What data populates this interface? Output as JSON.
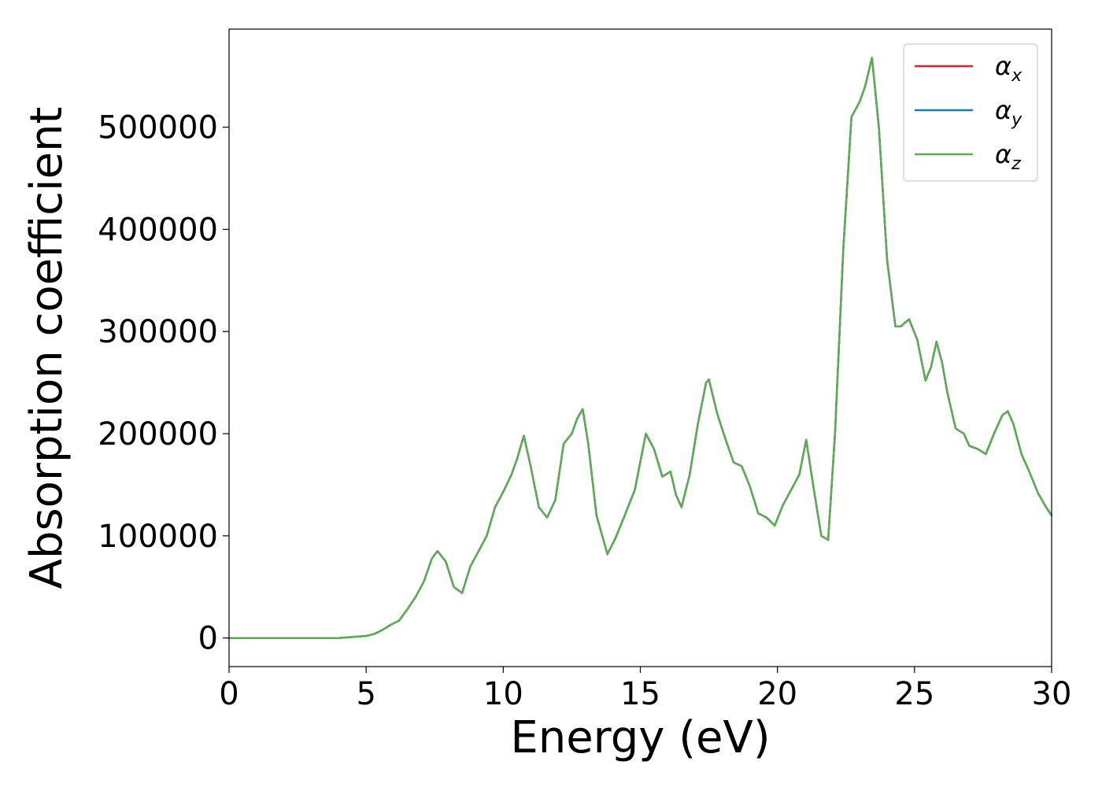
{
  "chart_data": {
    "type": "line",
    "title": "",
    "xlabel": "Energy (eV)",
    "ylabel": "Absorption coefficient",
    "xlim": [
      0,
      30
    ],
    "ylim": [
      -28000,
      596000
    ],
    "xticks": [
      0,
      5,
      10,
      15,
      20,
      25,
      30
    ],
    "xtick_labels": [
      "0",
      "5",
      "10",
      "15",
      "20",
      "25",
      "30"
    ],
    "yticks": [
      0,
      100000,
      200000,
      300000,
      400000,
      500000
    ],
    "ytick_labels": [
      "0",
      "100000",
      "200000",
      "300000",
      "400000",
      "500000"
    ],
    "grid": false,
    "legend_position": "top-right",
    "x": [
      0,
      1,
      2,
      3,
      4,
      5,
      5.3,
      5.6,
      5.9,
      6.2,
      6.5,
      6.8,
      7.1,
      7.4,
      7.6,
      7.9,
      8.2,
      8.5,
      8.8,
      9.1,
      9.4,
      9.7,
      10.0,
      10.3,
      10.5,
      10.75,
      11.0,
      11.3,
      11.6,
      11.9,
      12.2,
      12.5,
      12.7,
      12.9,
      13.1,
      13.4,
      13.8,
      14.1,
      14.4,
      14.8,
      15.2,
      15.5,
      15.8,
      16.1,
      16.3,
      16.5,
      16.8,
      17.1,
      17.4,
      17.5,
      17.8,
      18.1,
      18.4,
      18.7,
      19.0,
      19.3,
      19.6,
      19.9,
      20.2,
      20.5,
      20.8,
      21.05,
      21.3,
      21.6,
      21.85,
      22.1,
      22.4,
      22.7,
      23.0,
      23.2,
      23.45,
      23.7,
      24.0,
      24.3,
      24.5,
      24.8,
      25.1,
      25.4,
      25.6,
      25.8,
      26.0,
      26.2,
      26.5,
      26.8,
      27.0,
      27.3,
      27.6,
      27.9,
      28.2,
      28.4,
      28.6,
      28.9,
      29.2,
      29.5,
      29.8,
      30.0
    ],
    "series": [
      {
        "name": "αx",
        "color": "#d62728",
        "values": [
          0,
          0,
          0,
          0,
          0,
          2000,
          4000,
          8000,
          13000,
          17000,
          28000,
          40000,
          55000,
          78000,
          85000,
          75000,
          50000,
          44000,
          70000,
          85000,
          100000,
          128000,
          143000,
          160000,
          175000,
          198000,
          168000,
          128000,
          118000,
          135000,
          190000,
          200000,
          215000,
          224000,
          190000,
          120000,
          82000,
          98000,
          118000,
          145000,
          200000,
          185000,
          158000,
          163000,
          140000,
          128000,
          160000,
          210000,
          250000,
          253000,
          220000,
          195000,
          172000,
          168000,
          148000,
          122000,
          118000,
          110000,
          130000,
          145000,
          160000,
          194000,
          150000,
          100000,
          96000,
          200000,
          380000,
          510000,
          525000,
          540000,
          568000,
          500000,
          370000,
          305000,
          305000,
          312000,
          292000,
          252000,
          265000,
          290000,
          270000,
          240000,
          205000,
          200000,
          188000,
          185000,
          180000,
          200000,
          218000,
          222000,
          210000,
          180000,
          162000,
          142000,
          128000,
          120000
        ]
      },
      {
        "name": "αy",
        "color": "#1f77b4",
        "values": [
          0,
          0,
          0,
          0,
          0,
          2000,
          4000,
          8000,
          13000,
          17000,
          28000,
          40000,
          55000,
          78000,
          85000,
          75000,
          50000,
          44000,
          70000,
          85000,
          100000,
          128000,
          143000,
          160000,
          175000,
          198000,
          168000,
          128000,
          118000,
          135000,
          190000,
          200000,
          215000,
          224000,
          190000,
          120000,
          82000,
          98000,
          118000,
          145000,
          200000,
          185000,
          158000,
          163000,
          140000,
          128000,
          160000,
          210000,
          250000,
          253000,
          220000,
          195000,
          172000,
          168000,
          148000,
          122000,
          118000,
          110000,
          130000,
          145000,
          160000,
          194000,
          150000,
          100000,
          96000,
          200000,
          380000,
          510000,
          525000,
          540000,
          568000,
          500000,
          370000,
          305000,
          305000,
          312000,
          292000,
          252000,
          265000,
          290000,
          270000,
          240000,
          205000,
          200000,
          188000,
          185000,
          180000,
          200000,
          218000,
          222000,
          210000,
          180000,
          162000,
          142000,
          128000,
          120000
        ]
      },
      {
        "name": "αz",
        "color": "#5aae4f",
        "values": [
          0,
          0,
          0,
          0,
          0,
          2000,
          4000,
          8000,
          13000,
          17000,
          28000,
          40000,
          55000,
          78000,
          85000,
          75000,
          50000,
          44000,
          70000,
          85000,
          100000,
          128000,
          143000,
          160000,
          175000,
          198000,
          168000,
          128000,
          118000,
          135000,
          190000,
          200000,
          215000,
          224000,
          190000,
          120000,
          82000,
          98000,
          118000,
          145000,
          200000,
          185000,
          158000,
          163000,
          140000,
          128000,
          160000,
          210000,
          250000,
          253000,
          220000,
          195000,
          172000,
          168000,
          148000,
          122000,
          118000,
          110000,
          130000,
          145000,
          160000,
          194000,
          150000,
          100000,
          96000,
          200000,
          380000,
          510000,
          525000,
          540000,
          568000,
          500000,
          370000,
          305000,
          305000,
          312000,
          292000,
          252000,
          265000,
          290000,
          270000,
          240000,
          205000,
          200000,
          188000,
          185000,
          180000,
          200000,
          218000,
          222000,
          210000,
          180000,
          162000,
          142000,
          128000,
          120000
        ]
      }
    ],
    "legend": [
      {
        "symbol": "α",
        "sub": "x",
        "color": "#d62728"
      },
      {
        "symbol": "α",
        "sub": "y",
        "color": "#1f77b4"
      },
      {
        "symbol": "α",
        "sub": "z",
        "color": "#5aae4f"
      }
    ]
  }
}
